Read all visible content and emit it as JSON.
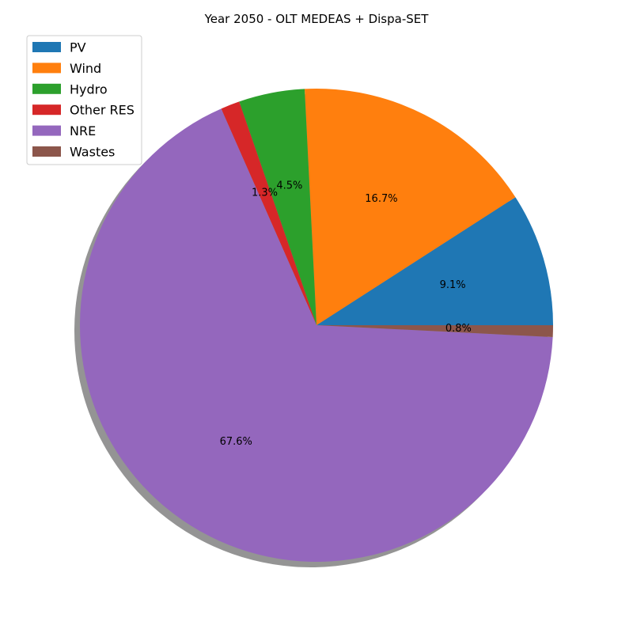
{
  "chart_data": {
    "type": "pie",
    "title": "Year 2050 - OLT MEDEAS + Dispa-SET",
    "slices": [
      {
        "label": "PV",
        "value": 9.1,
        "pct_label": "9.1%",
        "color": "#1f77b4"
      },
      {
        "label": "Wind",
        "value": 16.7,
        "pct_label": "16.7%",
        "color": "#ff7f0e"
      },
      {
        "label": "Hydro",
        "value": 4.5,
        "pct_label": "4.5%",
        "color": "#2ca02c"
      },
      {
        "label": "Other RES",
        "value": 1.3,
        "pct_label": "1.3%",
        "color": "#d62728"
      },
      {
        "label": "NRE",
        "value": 67.6,
        "pct_label": "67.6%",
        "color": "#9467bd"
      },
      {
        "label": "Wastes",
        "value": 0.8,
        "pct_label": "0.8%",
        "color": "#8c564b"
      }
    ],
    "start_angle_deg": 0,
    "direction": "counterclockwise",
    "shadow": true,
    "legend_position": "upper-left"
  }
}
